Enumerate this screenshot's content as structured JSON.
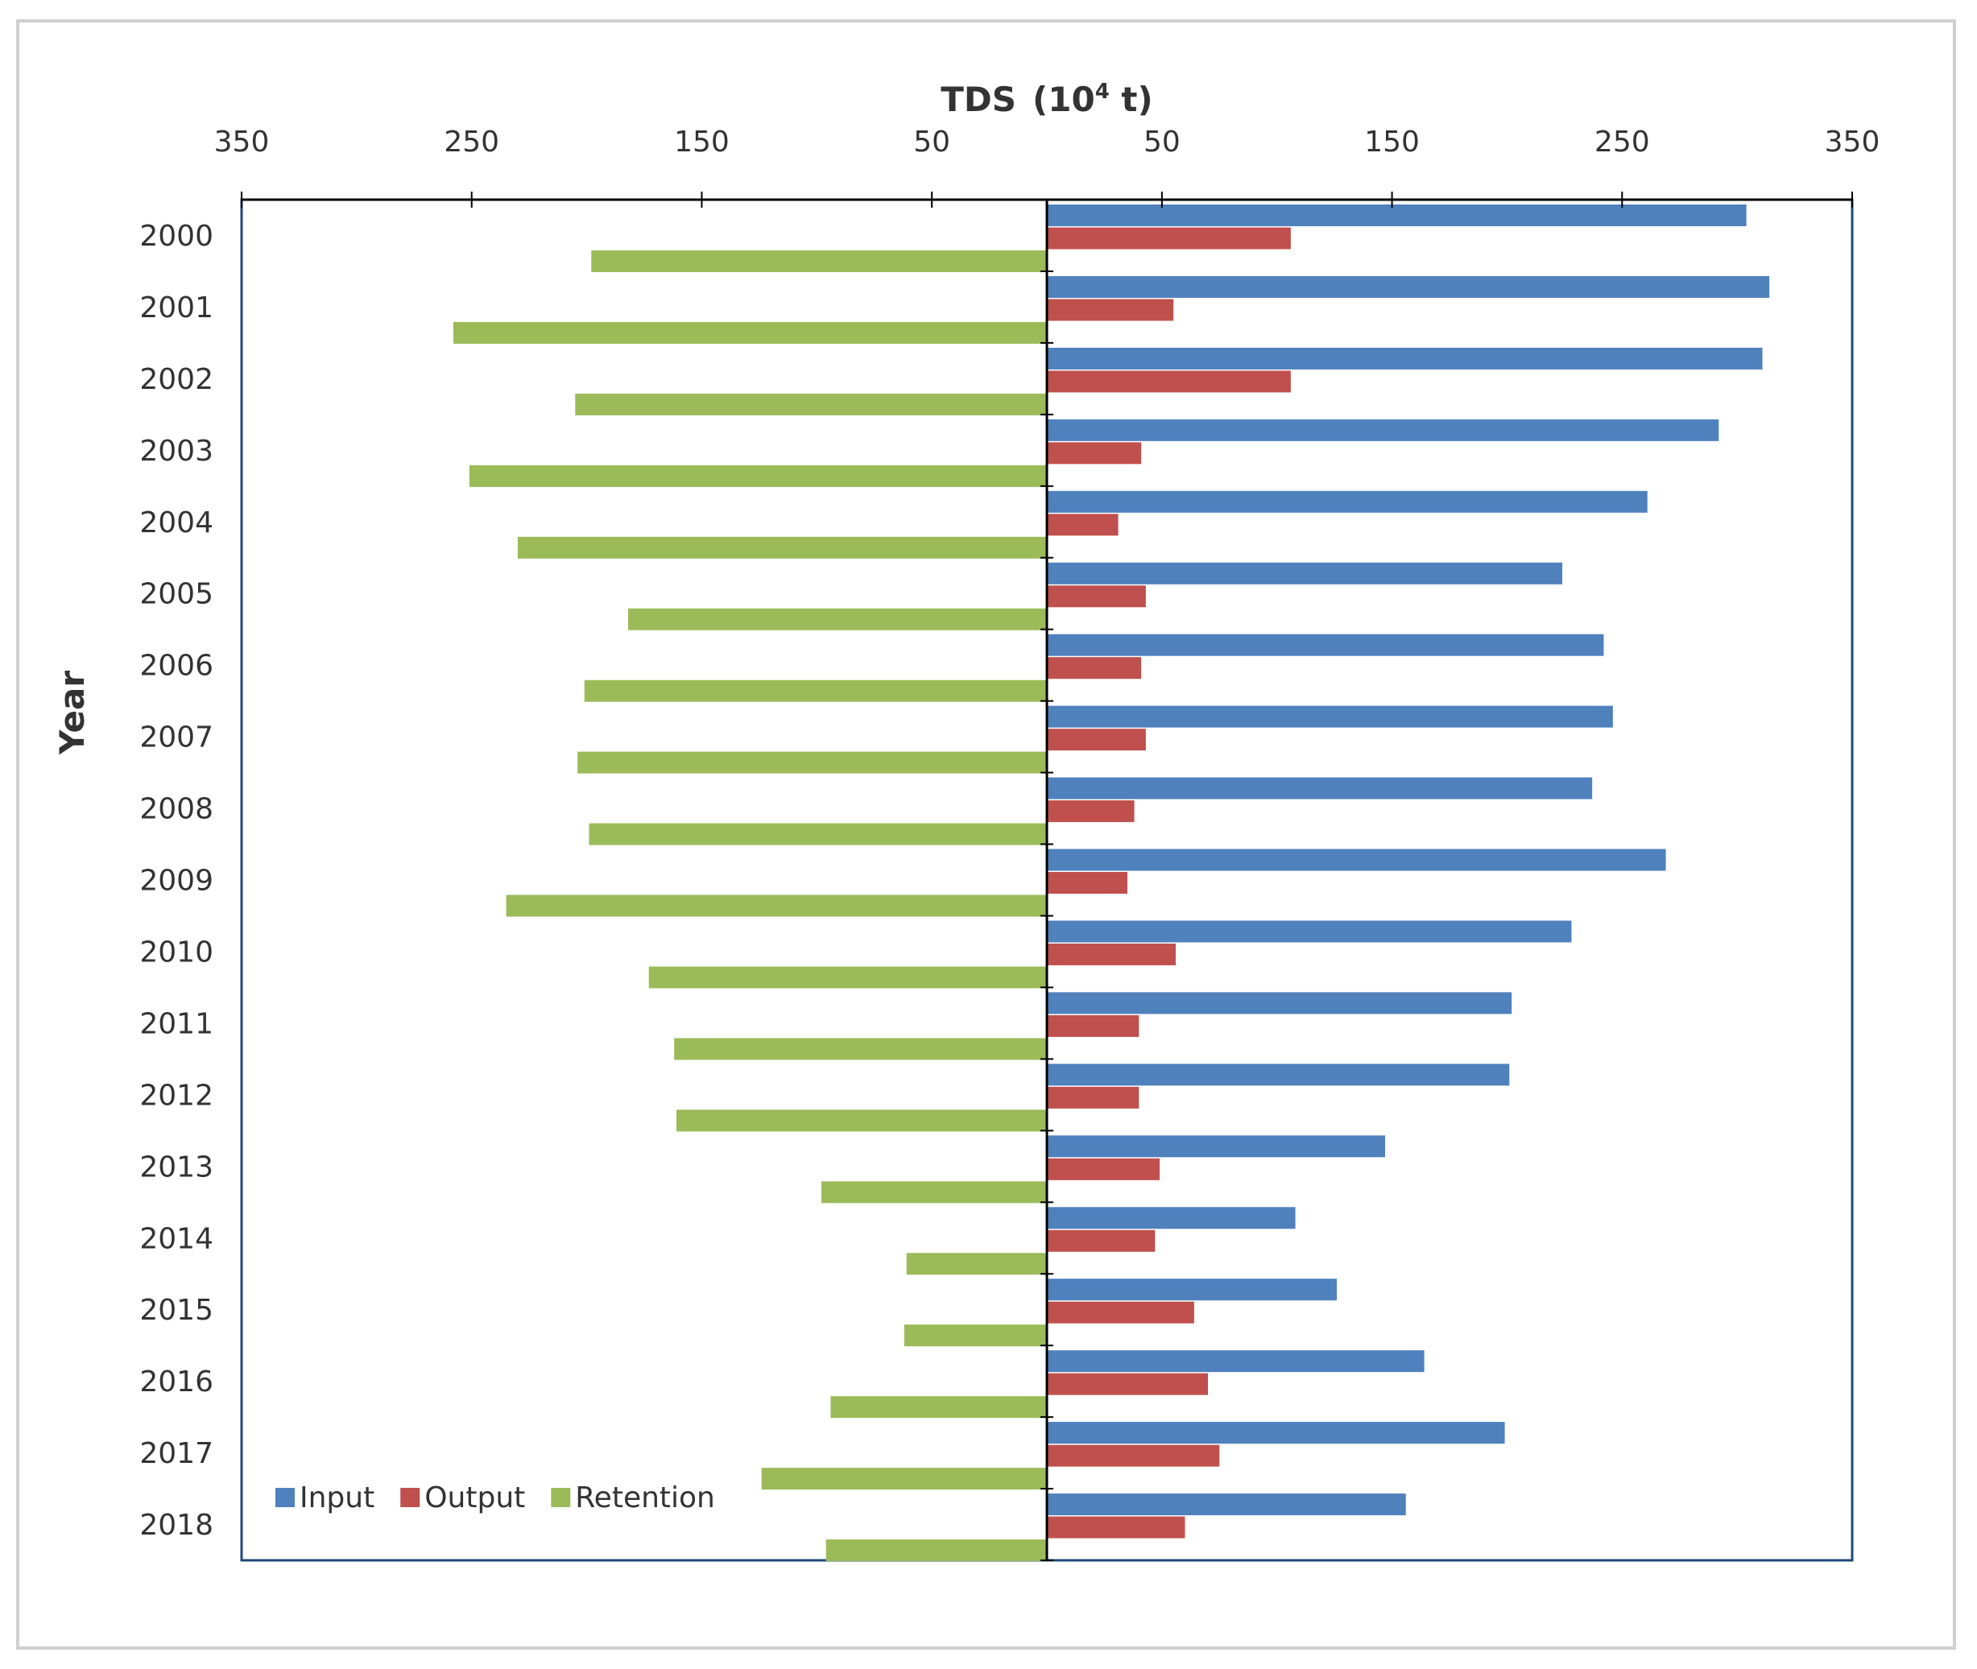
{
  "chart_data": {
    "type": "bar",
    "orientation": "horizontal-diverging",
    "title": "",
    "xlabel_main": "TDS",
    "xlabel_unit_base": "(10",
    "xlabel_unit_exp": "4",
    "xlabel_unit_tail": " t)",
    "ylabel": "Year",
    "xlim": [
      -350,
      350
    ],
    "x_ticks": [
      {
        "label": "350",
        "value": -350
      },
      {
        "label": "250",
        "value": -250
      },
      {
        "label": "150",
        "value": -150
      },
      {
        "label": "50",
        "value": -50
      },
      {
        "label": "50",
        "value": 50
      },
      {
        "label": "150",
        "value": 150
      },
      {
        "label": "250",
        "value": 250
      },
      {
        "label": "350",
        "value": 350
      }
    ],
    "categories": [
      "2000",
      "2001",
      "2002",
      "2003",
      "2004",
      "2005",
      "2006",
      "2007",
      "2008",
      "2009",
      "2010",
      "2011",
      "2012",
      "2013",
      "2014",
      "2015",
      "2016",
      "2017",
      "2018"
    ],
    "series": [
      {
        "name": "Input",
        "color": "#4f81bd",
        "direction": "right",
        "values": [
          304,
          314,
          311,
          292,
          261,
          224,
          242,
          246,
          237,
          269,
          228,
          202,
          201,
          147,
          108,
          126,
          164,
          199,
          156
        ]
      },
      {
        "name": "Output",
        "color": "#c0504d",
        "direction": "right",
        "values": [
          106,
          55,
          106,
          41,
          31,
          43,
          41,
          43,
          38,
          35,
          56,
          40,
          40,
          49,
          47,
          64,
          70,
          75,
          60
        ]
      },
      {
        "name": "Retention",
        "color": "#9bbb59",
        "direction": "left",
        "values": [
          198,
          258,
          205,
          251,
          230,
          182,
          201,
          204,
          199,
          235,
          173,
          162,
          161,
          98,
          61,
          62,
          94,
          124,
          96
        ]
      }
    ],
    "legend_position": "bottom-left",
    "grid": false
  }
}
